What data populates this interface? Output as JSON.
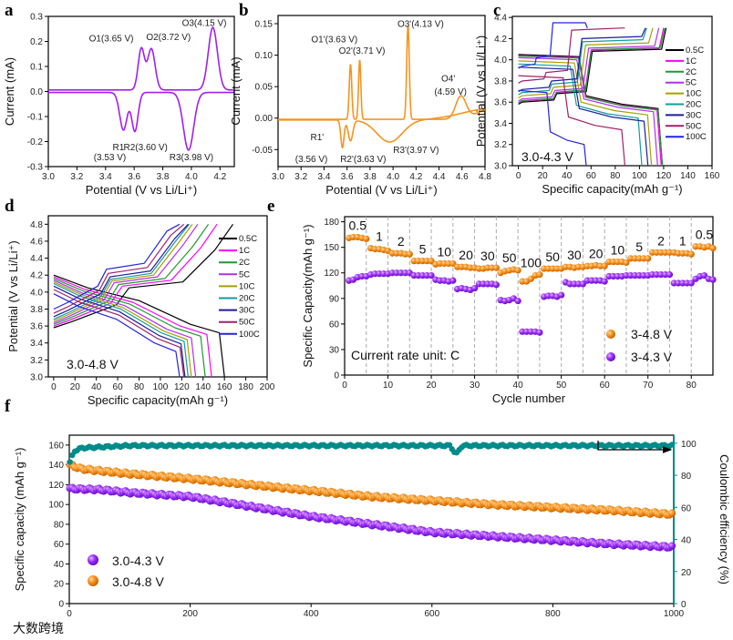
{
  "panel_letters": [
    "a",
    "b",
    "c",
    "d",
    "e",
    "f"
  ],
  "watermark": "大数跨境",
  "colors": {
    "purple": "#a020f0",
    "orange": "#f7931e",
    "teal": "#008b8b"
  },
  "chart_data": [
    {
      "id": "a",
      "type": "line",
      "xlabel": "Potential (V vs Li/Li⁺)",
      "ylabel": "Current (mA)",
      "xlim": [
        3.0,
        4.3
      ],
      "ylim": [
        -0.3,
        0.3
      ],
      "xticks": [
        "3.0",
        "3.2",
        "3.4",
        "3.6",
        "3.8",
        "4.0",
        "4.2"
      ],
      "yticks": [
        "-0.3",
        "-0.2",
        "-0.1",
        "0.0",
        "0.1",
        "0.2",
        "0.3"
      ],
      "color": "#a020f0",
      "oxidation_baseline": 0.006,
      "reduction_baseline": -0.004,
      "oxidation_peaks": [
        {
          "x": 3.65,
          "y": 0.165,
          "sigma": 0.022
        },
        {
          "x": 3.72,
          "y": 0.165,
          "sigma": 0.026
        },
        {
          "x": 4.15,
          "y": 0.25,
          "sigma": 0.032
        }
      ],
      "reduction_peaks": [
        {
          "x": 3.525,
          "y": -0.15,
          "sigma": 0.026
        },
        {
          "x": 3.605,
          "y": -0.155,
          "sigma": 0.022
        },
        {
          "x": 3.98,
          "y": -0.23,
          "sigma": 0.036
        }
      ],
      "annotations": [
        {
          "text": "O1(3.65 V)",
          "x": 3.44,
          "y": 0.2
        },
        {
          "text": "O2(3.72 V)",
          "x": 3.84,
          "y": 0.205
        },
        {
          "text": "O3(4.15 V)",
          "x": 4.09,
          "y": 0.262
        },
        {
          "text": "R1",
          "x": 3.49,
          "y": -0.235
        },
        {
          "text": "(3.53 V)",
          "x": 3.43,
          "y": -0.275
        },
        {
          "text": "R2(3.60 V)",
          "x": 3.68,
          "y": -0.235
        },
        {
          "text": "R3(3.98 V)",
          "x": 4.0,
          "y": -0.275
        }
      ]
    },
    {
      "id": "b",
      "type": "line",
      "xlabel": "Potential (V vs Li/Li⁺)",
      "ylabel": "Current (mA)",
      "xlim": [
        3.0,
        4.8
      ],
      "ylim": [
        -0.077,
        0.163
      ],
      "xticks": [
        "3.0",
        "3.2",
        "3.4",
        "3.6",
        "3.8",
        "4.0",
        "4.2",
        "4.4",
        "4.6",
        "4.8"
      ],
      "yticks": [
        "-0.05",
        "0.00",
        "0.05",
        "0.10",
        "0.15"
      ],
      "color": "#f7931e",
      "oxidation_baseline": -0.002,
      "reduction_baseline": -0.003,
      "oxidation_peaks": [
        {
          "x": 3.63,
          "y": 0.088,
          "sigma": 0.011
        },
        {
          "x": 3.71,
          "y": 0.095,
          "sigma": 0.01
        },
        {
          "x": 4.13,
          "y": 0.15,
          "sigma": 0.011
        },
        {
          "x": 4.59,
          "y": 0.036,
          "sigma": 0.045
        },
        {
          "x": 4.85,
          "y": 0.016,
          "sigma": 0.12
        }
      ],
      "reduction_peaks": [
        {
          "x": 3.56,
          "y": -0.044,
          "sigma": 0.014
        },
        {
          "x": 3.63,
          "y": -0.033,
          "sigma": 0.02
        },
        {
          "x": 3.97,
          "y": -0.035,
          "sigma": 0.11
        },
        {
          "x": 4.85,
          "y": 0.018,
          "sigma": 0.25
        }
      ],
      "annotations": [
        {
          "text": "O1'(3.63 V)",
          "x": 3.49,
          "y": 0.12
        },
        {
          "text": "O2'(3.71 V)",
          "x": 3.73,
          "y": 0.102
        },
        {
          "text": "O3'(4.13 V)",
          "x": 4.24,
          "y": 0.145
        },
        {
          "text": "O4'",
          "x": 4.48,
          "y": 0.058
        },
        {
          "text": "(4.59 V)",
          "x": 4.5,
          "y": 0.037
        },
        {
          "text": "R1'",
          "x": 3.34,
          "y": -0.035
        },
        {
          "text": "(3.56 V)",
          "x": 3.29,
          "y": -0.07
        },
        {
          "text": "R2'(3.63 V)",
          "x": 3.74,
          "y": -0.07
        },
        {
          "text": "R3'(3.97 V)",
          "x": 4.2,
          "y": -0.055
        }
      ]
    },
    {
      "id": "c",
      "type": "line",
      "xlabel": "Specific capacity(mAh g⁻¹)",
      "ylabel": "Potential (V vs Li/Li⁺)",
      "xlim": [
        -5,
        160
      ],
      "ylim": [
        3.0,
        4.41
      ],
      "xticks": [
        "0",
        "20",
        "40",
        "60",
        "80",
        "100",
        "120",
        "140",
        "160"
      ],
      "yticks": [
        "3.0",
        "3.2",
        "3.4",
        "3.6",
        "3.8",
        "4.0",
        "4.2",
        "4.4"
      ],
      "inner_label": "3.0-4.3 V",
      "voltage_window": [
        3.0,
        4.3
      ],
      "series": [
        {
          "name": "0.5C",
          "color": "#000000",
          "charge_capacity": 122,
          "discharge_capacity": 119,
          "polarization_V": 0.0
        },
        {
          "name": "1C",
          "color": "#ff00ff",
          "charge_capacity": 120,
          "discharge_capacity": 118,
          "polarization_V": 0.01
        },
        {
          "name": "2C",
          "color": "#1f9a2e",
          "charge_capacity": 121,
          "discharge_capacity": 119,
          "polarization_V": 0.015
        },
        {
          "name": "5C",
          "color": "#b030f0",
          "charge_capacity": 116,
          "discharge_capacity": 115,
          "polarization_V": 0.03
        },
        {
          "name": "10C",
          "color": "#a6a000",
          "charge_capacity": 111,
          "discharge_capacity": 110,
          "polarization_V": 0.06
        },
        {
          "name": "20C",
          "color": "#109c9c",
          "charge_capacity": 106,
          "discharge_capacity": 102,
          "polarization_V": 0.09
        },
        {
          "name": "30C",
          "color": "#1c1c9c",
          "charge_capacity": 105,
          "discharge_capacity": 107,
          "polarization_V": 0.12
        },
        {
          "name": "50C",
          "color": "#a0206a",
          "charge_capacity": 88,
          "discharge_capacity": 88,
          "polarization_V": 0.2
        },
        {
          "name": "100C",
          "color": "#2222e6",
          "charge_capacity": 57,
          "discharge_capacity": 56,
          "polarization_V": 0.34
        }
      ]
    },
    {
      "id": "d",
      "type": "line",
      "xlabel": "Specific capacity(mAh g⁻¹)",
      "ylabel": "Potential (V vs Li/Li⁺)",
      "xlim": [
        -5,
        200
      ],
      "ylim": [
        3.0,
        4.9
      ],
      "xticks": [
        "0",
        "20",
        "40",
        "60",
        "80",
        "100",
        "120",
        "140",
        "160",
        "180",
        "200"
      ],
      "yticks": [
        "3.0",
        "3.2",
        "3.4",
        "3.6",
        "3.8",
        "4.0",
        "4.2",
        "4.4",
        "4.6",
        "4.8"
      ],
      "inner_label": "3.0-4.8 V",
      "voltage_window": [
        3.0,
        4.8
      ],
      "series": [
        {
          "name": "0.5C",
          "color": "#000000",
          "charge_capacity": 168,
          "discharge_capacity": 160,
          "polarization_V": 0.0
        },
        {
          "name": "1C",
          "color": "#ff00ff",
          "charge_capacity": 153,
          "discharge_capacity": 148,
          "polarization_V": 0.02
        },
        {
          "name": "2C",
          "color": "#1f9a2e",
          "charge_capacity": 145,
          "discharge_capacity": 142,
          "polarization_V": 0.04
        },
        {
          "name": "5C",
          "color": "#b030f0",
          "charge_capacity": 135,
          "discharge_capacity": 133,
          "polarization_V": 0.06
        },
        {
          "name": "10C",
          "color": "#a6a000",
          "charge_capacity": 130,
          "discharge_capacity": 129,
          "polarization_V": 0.08
        },
        {
          "name": "20C",
          "color": "#109c9c",
          "charge_capacity": 127,
          "discharge_capacity": 126,
          "polarization_V": 0.1
        },
        {
          "name": "30C",
          "color": "#1c1c9c",
          "charge_capacity": 126,
          "discharge_capacity": 123,
          "polarization_V": 0.13
        },
        {
          "name": "50C",
          "color": "#a0206a",
          "charge_capacity": 122,
          "discharge_capacity": 122,
          "polarization_V": 0.17
        },
        {
          "name": "100C",
          "color": "#2222e6",
          "charge_capacity": 118,
          "discharge_capacity": 118,
          "polarization_V": 0.22
        }
      ]
    },
    {
      "id": "e",
      "type": "scatter",
      "xlabel": "Cycle number",
      "ylabel": "Specific Capacity(mAh g⁻¹)",
      "xlim": [
        0,
        85
      ],
      "ylim": [
        0,
        186
      ],
      "xticks": [
        "0",
        "10",
        "20",
        "30",
        "40",
        "50",
        "60",
        "70",
        "80"
      ],
      "yticks": [
        "0",
        "30",
        "60",
        "90",
        "120",
        "150",
        "180"
      ],
      "note": "Current rate unit: C",
      "rate_labels": [
        "0.5",
        "1",
        "2",
        "5",
        "10",
        "20",
        "30",
        "50",
        "100",
        "50",
        "30",
        "20",
        "10",
        "5",
        "2",
        "1",
        "0.5"
      ],
      "series": [
        {
          "name": "3-4.8 V",
          "color": "#f7931e",
          "segments": [
            [
              161,
              162,
              162,
              161,
              160
            ],
            [
              149,
              148,
              148,
              147,
              146
            ],
            [
              143,
              143,
              143,
              142,
              142
            ],
            [
              134,
              134,
              134,
              134,
              134
            ],
            [
              130,
              131,
              131,
              131,
              131
            ],
            [
              127,
              127,
              127,
              126,
              126
            ],
            [
              125,
              125,
              126,
              126,
              126
            ],
            [
              120,
              122,
              123,
              124,
              123
            ],
            [
              110,
              110,
              113,
              117,
              118
            ],
            [
              125,
              125,
              125,
              125,
              125
            ],
            [
              127,
              127,
              126,
              127,
              127
            ],
            [
              128,
              128,
              129,
              128,
              128
            ],
            [
              133,
              133,
              133,
              133,
              132
            ],
            [
              137,
              137,
              137,
              137,
              137
            ],
            [
              144,
              144,
              144,
              144,
              144
            ],
            [
              144,
              143,
              143,
              143,
              142
            ],
            [
              151,
              151,
              150,
              151,
              149
            ]
          ]
        },
        {
          "name": "3-4.3 V",
          "color": "#9b30ff",
          "segments": [
            [
              111,
              112,
              115,
              116,
              116
            ],
            [
              118,
              119,
              119,
              119,
              119
            ],
            [
              120,
              120,
              120,
              120,
              120
            ],
            [
              117,
              117,
              117,
              117,
              117
            ],
            [
              112,
              111,
              111,
              110,
              111
            ],
            [
              101,
              102,
              101,
              100,
              102
            ],
            [
              107,
              107,
              107,
              107,
              106
            ],
            [
              88,
              87,
              88,
              90,
              87
            ],
            [
              51,
              51,
              51,
              51,
              50
            ],
            [
              92,
              93,
              93,
              92,
              94
            ],
            [
              109,
              107,
              107,
              107,
              107
            ],
            [
              111,
              111,
              111,
              111,
              110
            ],
            [
              116,
              116,
              116,
              116,
              117
            ],
            [
              117,
              117,
              117,
              117,
              117
            ],
            [
              118,
              118,
              118,
              118,
              118
            ],
            [
              108,
              108,
              108,
              108,
              108
            ],
            [
              113,
              116,
              117,
              113,
              112
            ]
          ]
        }
      ]
    },
    {
      "id": "f",
      "type": "scatter",
      "xlabel": "",
      "ylabel": "Specific capacity (mAh g⁻¹)",
      "ylabel_right": "Coulombic efficiency (%)",
      "xlim": [
        0,
        1000
      ],
      "ylim": [
        0,
        170
      ],
      "ylim_right": [
        0,
        105
      ],
      "xticks": [
        "0",
        "200",
        "400",
        "600",
        "800",
        "1000"
      ],
      "yticks": [
        "0",
        "20",
        "40",
        "60",
        "80",
        "100",
        "120",
        "140",
        "160"
      ],
      "yticks_right": [
        "0",
        "20",
        "40",
        "60",
        "80",
        "100"
      ],
      "series": [
        {
          "name": "3.0-4.3 V",
          "color": "#9b30ff",
          "axis": "left",
          "anchors": [
            [
              1,
              116
            ],
            [
              50,
              115
            ],
            [
              100,
              112
            ],
            [
              200,
              108
            ],
            [
              300,
              98
            ],
            [
              400,
              88
            ],
            [
              500,
              80
            ],
            [
              600,
              72
            ],
            [
              700,
              68
            ],
            [
              800,
              64
            ],
            [
              900,
              60
            ],
            [
              1000,
              57
            ]
          ]
        },
        {
          "name": "3.0-4.8 V",
          "color": "#f7931e",
          "axis": "left",
          "anchors": [
            [
              1,
              140
            ],
            [
              20,
              136
            ],
            [
              50,
              134
            ],
            [
              100,
              131
            ],
            [
              200,
              126
            ],
            [
              300,
              120
            ],
            [
              400,
              114
            ],
            [
              500,
              108
            ],
            [
              600,
              104
            ],
            [
              700,
              100
            ],
            [
              800,
              97
            ],
            [
              900,
              94
            ],
            [
              1000,
              90
            ]
          ]
        },
        {
          "name": "Coulombic efficiency",
          "color": "#008b8b",
          "axis": "right",
          "anchors": [
            [
              1,
              88
            ],
            [
              8,
              95
            ],
            [
              20,
              97
            ],
            [
              100,
              98.5
            ],
            [
              630,
              98.5
            ],
            [
              640,
              93
            ],
            [
              650,
              98.5
            ],
            [
              1000,
              98.5
            ]
          ]
        }
      ]
    }
  ]
}
